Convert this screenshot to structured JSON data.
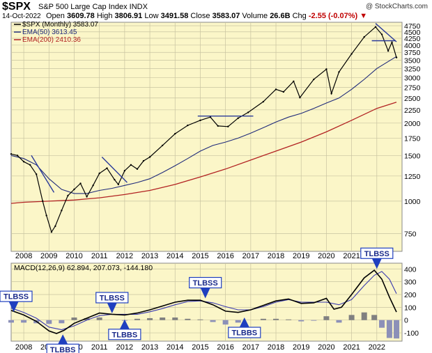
{
  "header": {
    "symbol": "$SPX",
    "description": "S&P 500 Large Cap Index INDX",
    "watermark": "@ StockCharts.com",
    "date": "14-Oct-2022",
    "open_label": "Open",
    "open": "3609.78",
    "high_label": "High",
    "high": "3806.91",
    "low_label": "Low",
    "low": "3491.58",
    "close_label": "Close",
    "close": "3583.07",
    "volume_label": "Volume",
    "volume": "26.6B",
    "chg_label": "Chg",
    "chg": "-2.55 (-0.07%)",
    "chg_marker": "▼"
  },
  "chart_data": [
    {
      "type": "line",
      "scale": "log",
      "ylim": [
        640,
        4900
      ],
      "xlim": [
        2007.5,
        2023.0
      ],
      "grid": true,
      "legend_placement": "top-left",
      "legend": [
        {
          "label": "$SPX (Monthly) 3583.07",
          "color": "#000000"
        },
        {
          "label": "EMA(50) 3613.45",
          "color": "#1f2a7a"
        },
        {
          "label": "EMA(200) 2410.36",
          "color": "#b22222"
        }
      ],
      "y_ticks": [
        750,
        1000,
        1250,
        1500,
        1750,
        2000,
        2250,
        2500,
        2750,
        3000,
        3250,
        3500,
        3750,
        4000,
        4250,
        4500,
        4750
      ],
      "x_ticks": [
        "2008",
        "2009",
        "2010",
        "2011",
        "2012",
        "2013",
        "2014",
        "2015",
        "2016",
        "2017",
        "2018",
        "2019",
        "2020",
        "2021",
        "2022"
      ],
      "series": [
        {
          "name": "$SPX (Monthly)",
          "color": "#000000",
          "x": [
            2007.5,
            2007.75,
            2008.0,
            2008.25,
            2008.5,
            2008.75,
            2008.9,
            2009.1,
            2009.25,
            2009.5,
            2009.75,
            2010.0,
            2010.25,
            2010.5,
            2010.75,
            2011.0,
            2011.3,
            2011.6,
            2011.75,
            2012.0,
            2012.25,
            2012.5,
            2012.75,
            2013.0,
            2013.5,
            2014.0,
            2014.5,
            2015.0,
            2015.4,
            2015.7,
            2016.1,
            2016.5,
            2016.9,
            2017.5,
            2018.0,
            2018.3,
            2018.7,
            2018.95,
            2019.5,
            2020.0,
            2020.2,
            2020.5,
            2021.0,
            2021.5,
            2021.95,
            2022.2,
            2022.45,
            2022.6,
            2022.78
          ],
          "values": [
            1520,
            1500,
            1420,
            1380,
            1270,
            1000,
            880,
            760,
            800,
            920,
            1050,
            1110,
            1170,
            1040,
            1150,
            1280,
            1340,
            1210,
            1160,
            1310,
            1380,
            1330,
            1430,
            1480,
            1640,
            1820,
            1960,
            2050,
            2110,
            1950,
            1940,
            2090,
            2200,
            2420,
            2700,
            2640,
            2900,
            2510,
            2950,
            3230,
            2600,
            3150,
            3700,
            4300,
            4700,
            4400,
            3800,
            4100,
            3583
          ]
        },
        {
          "name": "EMA(50)",
          "color": "#1f2a7a",
          "x": [
            2007.5,
            2008.0,
            2008.5,
            2009.0,
            2009.5,
            2010.0,
            2010.5,
            2011.0,
            2011.5,
            2012.0,
            2012.5,
            2013.0,
            2013.5,
            2014.0,
            2014.5,
            2015.0,
            2015.5,
            2016.0,
            2016.5,
            2017.0,
            2017.5,
            2018.0,
            2018.5,
            2019.0,
            2019.5,
            2020.0,
            2020.5,
            2021.0,
            2021.5,
            2022.0,
            2022.5,
            2022.78
          ],
          "values": [
            1500,
            1460,
            1380,
            1220,
            1110,
            1070,
            1070,
            1100,
            1120,
            1150,
            1180,
            1220,
            1290,
            1370,
            1460,
            1560,
            1640,
            1690,
            1750,
            1830,
            1920,
            2020,
            2110,
            2180,
            2280,
            2390,
            2500,
            2700,
            2950,
            3250,
            3480,
            3613
          ]
        },
        {
          "name": "EMA(200)",
          "color": "#b22222",
          "x": [
            2007.5,
            2008.0,
            2009.0,
            2010.0,
            2011.0,
            2012.0,
            2013.0,
            2014.0,
            2015.0,
            2016.0,
            2017.0,
            2018.0,
            2019.0,
            2020.0,
            2021.0,
            2022.0,
            2022.78
          ],
          "values": [
            980,
            990,
            1000,
            1010,
            1030,
            1060,
            1100,
            1160,
            1240,
            1330,
            1440,
            1560,
            1690,
            1850,
            2050,
            2280,
            2410
          ]
        }
      ],
      "trendlines": [
        {
          "color": "#2a3a9a",
          "x": [
            2008.3,
            2009.2
          ],
          "values": [
            1500,
            1080
          ]
        },
        {
          "color": "#2a3a9a",
          "x": [
            2011.1,
            2012.1
          ],
          "values": [
            1480,
            1180
          ]
        },
        {
          "color": "#2a3a9a",
          "x": [
            2014.9,
            2017.1
          ],
          "values": [
            2130,
            2130
          ]
        },
        {
          "color": "#2a3a9a",
          "x": [
            2021.95,
            2022.78
          ],
          "values": [
            4850,
            4120
          ]
        },
        {
          "color": "#2a3a9a",
          "x": [
            2021.8,
            2022.75
          ],
          "values": [
            4160,
            4160
          ]
        }
      ]
    },
    {
      "type": "line",
      "title": "MACD(12,26,9) 62.894, 207.073, -144.180",
      "ylim": [
        -165,
        445
      ],
      "grid": true,
      "y_ticks": [
        -100,
        0,
        100,
        200,
        300,
        400
      ],
      "x_ticks": [
        "2008",
        "2009",
        "2010",
        "2011",
        "2012",
        "2013",
        "2014",
        "2015",
        "2016",
        "2017",
        "2018",
        "2019",
        "2020",
        "2021",
        "2022"
      ],
      "series": [
        {
          "name": "MACD",
          "color": "#000000",
          "x": [
            2007.5,
            2008.0,
            2008.5,
            2009.0,
            2009.3,
            2009.6,
            2010.0,
            2010.5,
            2011.0,
            2011.5,
            2012.0,
            2012.5,
            2013.0,
            2013.5,
            2014.0,
            2014.5,
            2015.0,
            2015.5,
            2016.0,
            2016.5,
            2017.0,
            2017.5,
            2018.0,
            2018.5,
            2019.0,
            2019.5,
            2020.0,
            2020.3,
            2020.6,
            2021.0,
            2021.5,
            2021.9,
            2022.2,
            2022.5,
            2022.78
          ],
          "values": [
            75,
            40,
            -10,
            -85,
            -105,
            -80,
            -25,
            15,
            55,
            45,
            40,
            55,
            80,
            110,
            140,
            155,
            155,
            120,
            70,
            60,
            80,
            115,
            150,
            165,
            130,
            135,
            170,
            85,
            100,
            200,
            330,
            390,
            320,
            180,
            63
          ]
        },
        {
          "name": "Signal",
          "color": "#3a3ab0",
          "x": [
            2007.5,
            2008.0,
            2008.5,
            2009.0,
            2009.5,
            2010.0,
            2010.5,
            2011.0,
            2011.5,
            2012.0,
            2012.5,
            2013.0,
            2013.5,
            2014.0,
            2014.5,
            2015.0,
            2015.5,
            2016.0,
            2016.5,
            2017.0,
            2017.5,
            2018.0,
            2018.5,
            2019.0,
            2019.5,
            2020.0,
            2020.5,
            2021.0,
            2021.5,
            2021.9,
            2022.2,
            2022.5,
            2022.78
          ],
          "values": [
            95,
            60,
            15,
            -55,
            -75,
            -45,
            0,
            35,
            45,
            45,
            45,
            65,
            90,
            120,
            145,
            150,
            135,
            105,
            80,
            80,
            105,
            140,
            160,
            140,
            140,
            140,
            120,
            160,
            270,
            350,
            380,
            320,
            207
          ]
        },
        {
          "name": "Histogram",
          "color": "#707070",
          "x": [
            2007.5,
            2008.0,
            2008.5,
            2009.0,
            2009.5,
            2010.0,
            2010.5,
            2011.0,
            2011.5,
            2012.0,
            2012.5,
            2013.0,
            2013.5,
            2014.0,
            2014.5,
            2015.0,
            2015.5,
            2016.0,
            2016.5,
            2017.0,
            2017.5,
            2018.0,
            2018.5,
            2019.0,
            2019.5,
            2020.0,
            2020.5,
            2021.0,
            2021.5,
            2021.9,
            2022.2,
            2022.5,
            2022.78
          ],
          "values": [
            -20,
            -20,
            -25,
            -30,
            -25,
            20,
            15,
            20,
            0,
            -5,
            10,
            15,
            20,
            20,
            10,
            5,
            -15,
            -35,
            -20,
            0,
            10,
            10,
            5,
            -10,
            -5,
            30,
            -20,
            40,
            60,
            40,
            -60,
            -140,
            -144
          ]
        }
      ],
      "annotations": [
        {
          "text": "TLBSS",
          "x": 2007.6,
          "y": 63,
          "dir": "down"
        },
        {
          "text": "TLBSS",
          "x": 2011.5,
          "y": 53,
          "dir": "down"
        },
        {
          "text": "TLBSS",
          "x": 2015.2,
          "y": 170,
          "dir": "down"
        },
        {
          "text": "TLBSS",
          "x": 2022.0,
          "y": 400,
          "dir": "down"
        },
        {
          "text": "TLBBS",
          "x": 2009.55,
          "y": -112,
          "dir": "up"
        },
        {
          "text": "TLBBS",
          "x": 2012.0,
          "y": 5,
          "dir": "up"
        },
        {
          "text": "TLBBS",
          "x": 2016.75,
          "y": 20,
          "dir": "up"
        }
      ]
    }
  ]
}
